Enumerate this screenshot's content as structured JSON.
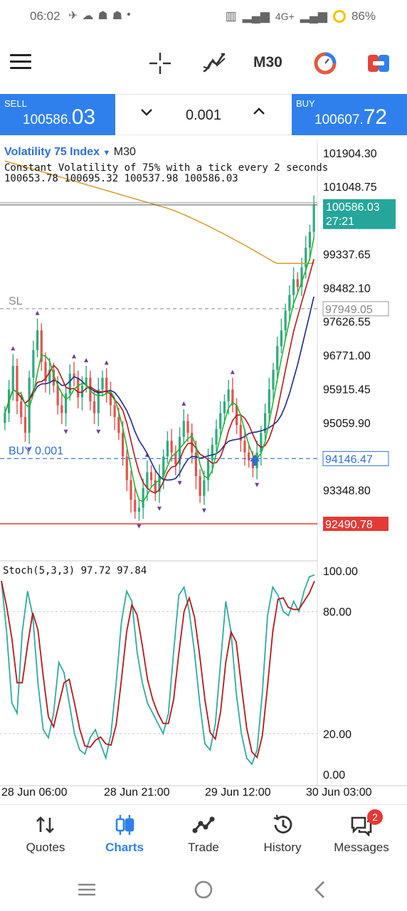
{
  "status_bar": {
    "time": "06:02",
    "network": "4G+",
    "battery": "86%"
  },
  "toolbar": {
    "timeframe": "M30"
  },
  "quote": {
    "sell_label": "SELL",
    "sell_price_main": "100586.",
    "sell_price_big": "03",
    "buy_label": "BUY",
    "buy_price_main": "100607.",
    "buy_price_big": "72",
    "lot_value": "0.001"
  },
  "chart": {
    "symbol": "Volatility 75 Index",
    "symbol_arrow": "▼",
    "timeframe": "M30",
    "description": "Constant Volatility of 75% with a tick every 2 seconds",
    "ohlc": "100653.78 100695.32 100537.98 100586.03",
    "stoch_label": "Stoch(5,3,3) 97.72 97.84",
    "sl_label": "SL",
    "buy_order_label": "BUY 0.001",
    "current_price": "100586.03",
    "countdown": "27:21",
    "sl_price": "97949.05",
    "buy_price_tag": "94146.47",
    "stop_price_tag": "92490.78",
    "colors": {
      "bull": "#2eab7e",
      "bear": "#e0534f",
      "ma_fast": "#22b52e",
      "ma_mid": "#b5171d",
      "ma_slow": "#1a2a8c",
      "ma_long": "#d9a23a",
      "stoch_main": "#2eab9f",
      "stoch_signal": "#b5171d",
      "buy_line": "#2f6fd0",
      "stop_line": "#e53935"
    }
  },
  "chart_data": {
    "type": "candlestick",
    "price_axis_ticks": [
      "101904.30",
      "101048.75",
      "99337.65",
      "98482.10",
      "97626.55",
      "96771.00",
      "95915.45",
      "95059.90",
      "93348.80"
    ],
    "price_range": [
      92490.78,
      102100
    ],
    "stoch_axis_ticks": [
      "100.00",
      "80.00",
      "20.00",
      "0.00"
    ],
    "stoch_range": [
      0,
      100
    ],
    "time_labels": [
      "28 Jun 06:00",
      "28 Jun 21:00",
      "29 Jun 12:00",
      "30 Jun 03:00"
    ],
    "close": [
      95300,
      95900,
      96500,
      95600,
      95200,
      94800,
      96200,
      96900,
      97400,
      96600,
      96100,
      96400,
      96000,
      95500,
      95300,
      95800,
      96300,
      96200,
      95700,
      96000,
      96200,
      95600,
      95300,
      95900,
      96200,
      95800,
      95500,
      95200,
      94800,
      94200,
      93600,
      93100,
      92800,
      92900,
      93400,
      93800,
      93600,
      93300,
      93700,
      94200,
      94600,
      94300,
      94000,
      94700,
      95100,
      94800,
      94300,
      93700,
      93200,
      93600,
      94100,
      94500,
      94900,
      95300,
      95600,
      95900,
      95500,
      95000,
      94600,
      94300,
      94100,
      93900,
      94300,
      94800,
      95300,
      95900,
      96400,
      97000,
      97400,
      97900,
      98300,
      98700,
      98500,
      99000,
      99500,
      99900,
      100586
    ],
    "stoch_main": [
      95,
      70,
      35,
      30,
      70,
      90,
      78,
      45,
      22,
      18,
      30,
      55,
      50,
      35,
      20,
      12,
      10,
      18,
      22,
      15,
      8,
      20,
      45,
      75,
      90,
      85,
      60,
      45,
      35,
      30,
      25,
      20,
      30,
      60,
      88,
      92,
      80,
      60,
      35,
      15,
      12,
      25,
      55,
      85,
      70,
      40,
      20,
      8,
      5,
      12,
      40,
      78,
      92,
      88,
      80,
      78,
      85,
      80,
      90,
      97,
      98
    ]
  },
  "nav": {
    "quotes": "Quotes",
    "charts": "Charts",
    "trade": "Trade",
    "history": "History",
    "messages": "Messages",
    "messages_badge": "2"
  }
}
